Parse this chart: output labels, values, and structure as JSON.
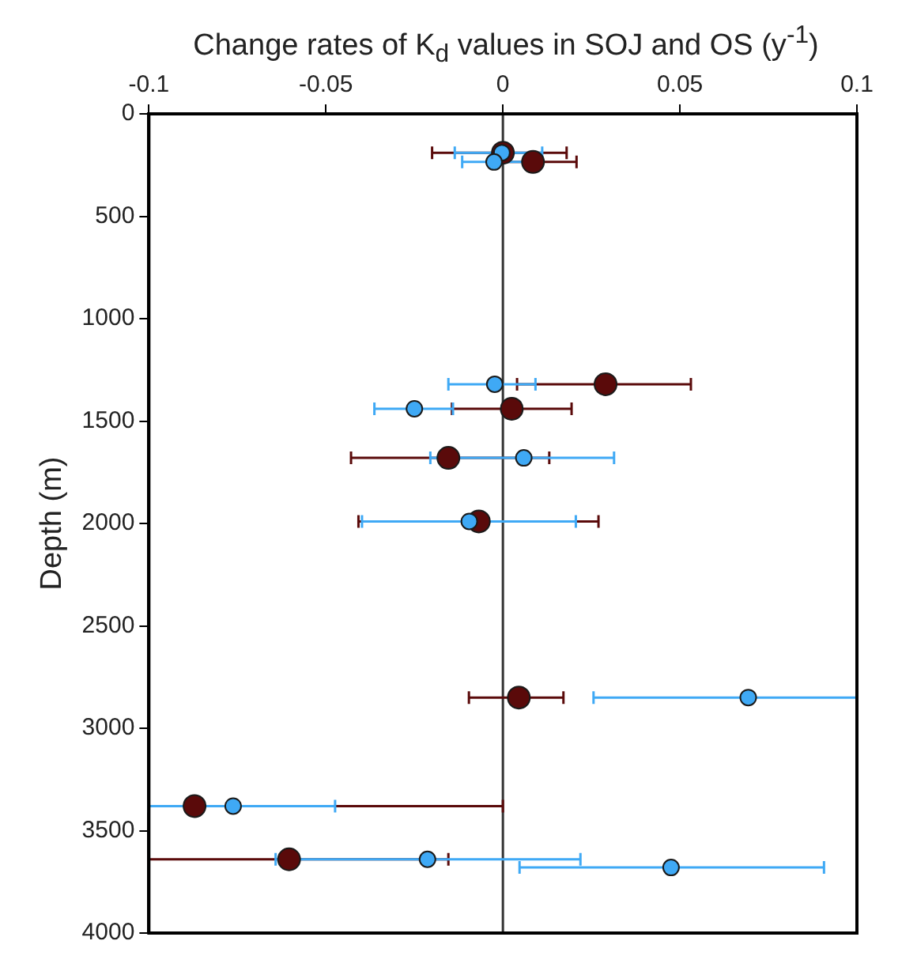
{
  "chart_data": {
    "type": "scatter",
    "title": "Change rates of K$_{d}$ values in SOJ and OS (y$^{-1}$)",
    "ylabel": "Depth (m)",
    "xlim": [
      -0.1,
      0.1
    ],
    "xticks": [
      -0.1,
      -0.05,
      0,
      0.05,
      0.1
    ],
    "ylim": [
      4000,
      0
    ],
    "yticks": [
      0,
      500,
      1000,
      1500,
      2000,
      2500,
      3000,
      3500,
      4000
    ],
    "grid": false,
    "legend": false,
    "marker": "circle",
    "ref_lines": [
      {
        "axis": "x",
        "value": 0,
        "color": "#333333"
      }
    ],
    "series": [
      {
        "color": "#5a0a0a",
        "x": [
          0.0,
          0.0085,
          0.029,
          0.0025,
          -0.0154,
          -0.0068,
          0.0045,
          -0.0871,
          -0.0604
        ],
        "values": [
          190,
          235,
          1320,
          1440,
          1680,
          1990,
          2850,
          3380,
          3640
        ],
        "xerrors": [
          [
            -0.02,
            0.018
          ],
          [
            -0.0034,
            0.0208
          ],
          [
            0.004,
            0.0531
          ],
          [
            -0.0144,
            0.0194
          ],
          [
            -0.0429,
            0.0131
          ],
          [
            -0.0408,
            0.027
          ],
          [
            -0.0096,
            0.0171
          ],
          [
            -0.1,
            0
          ],
          [
            -0.1,
            -0.0154
          ]
        ]
      },
      {
        "color": "#3fa9f5",
        "x": [
          -0.0003,
          -0.0025,
          -0.0023,
          -0.025,
          0.0059,
          -0.0095,
          0.0693,
          -0.0762,
          -0.0213,
          0.0475
        ],
        "values": [
          190,
          235,
          1320,
          1440,
          1680,
          1990,
          2850,
          3380,
          3640,
          3680
        ],
        "xerrors": [
          [
            -0.0136,
            0.0111
          ],
          [
            -0.0115,
            0.0065
          ],
          [
            -0.0154,
            0.0092
          ],
          [
            -0.0363,
            -0.0141
          ],
          [
            -0.0205,
            0.0314
          ],
          [
            -0.0398,
            0.0206
          ],
          [
            0.0256,
            0.1
          ],
          [
            -0.1,
            -0.0474
          ],
          [
            -0.0642,
            0.0219
          ],
          [
            0.0047,
            0.0907
          ]
        ]
      }
    ]
  }
}
